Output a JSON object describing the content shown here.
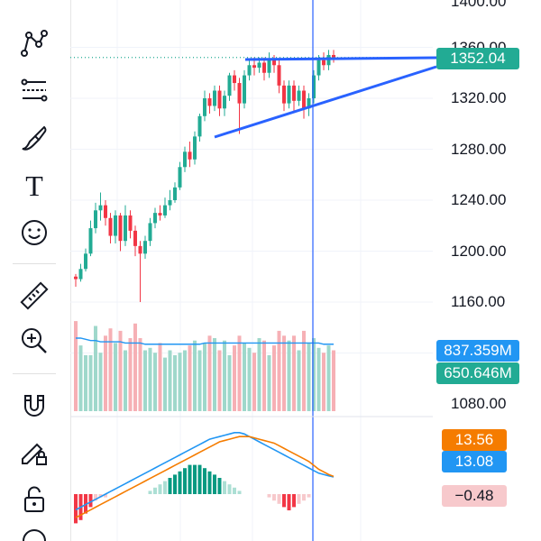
{
  "toolbar": {
    "tools": [
      {
        "name": "pattern-tool",
        "icon": "pattern-icon"
      },
      {
        "name": "fib-tool",
        "icon": "fib-retracement-icon"
      },
      {
        "name": "brush-tool",
        "icon": "brush-icon"
      },
      {
        "name": "text-tool",
        "icon": "text-icon",
        "label": "T"
      },
      {
        "name": "emoji-tool",
        "icon": "smiley-icon"
      },
      {
        "name": "ruler-tool",
        "icon": "ruler-icon"
      },
      {
        "name": "zoom-tool",
        "icon": "zoom-in-icon"
      },
      {
        "name": "magnet-tool",
        "icon": "magnet-icon"
      },
      {
        "name": "lock-drawings-tool",
        "icon": "pencil-lock-icon"
      },
      {
        "name": "unlock-tool",
        "icon": "unlock-icon"
      }
    ]
  },
  "price_axis": {
    "labels": [
      "1400.00",
      "1360.00",
      "1320.00",
      "1280.00",
      "1240.00",
      "1200.00",
      "1160.00",
      "1080.00"
    ],
    "last_price": "1352.04",
    "last_price_color": "#22ab94"
  },
  "volume": {
    "ma_value": "837.359M",
    "ma_color": "#2196f3",
    "value": "650.646M",
    "value_color": "#22ab94"
  },
  "macd": {
    "signal_value": "13.56",
    "signal_color": "#f57c00",
    "macd_value": "13.08",
    "macd_color": "#2196f3",
    "hist_value": "−0.48",
    "hist_color": "#f7c9cc"
  },
  "chart_data": {
    "type": "candlestick",
    "up_color": "#22ab94",
    "down_color": "#f23645",
    "price_range": [
      1080,
      1400
    ],
    "candles": [
      [
        1180,
        1178,
        1172,
        1182
      ],
      [
        1178,
        1186,
        1176,
        1190
      ],
      [
        1186,
        1198,
        1184,
        1202
      ],
      [
        1198,
        1218,
        1196,
        1224
      ],
      [
        1218,
        1232,
        1214,
        1238
      ],
      [
        1232,
        1236,
        1224,
        1246
      ],
      [
        1236,
        1226,
        1220,
        1240
      ],
      [
        1226,
        1212,
        1206,
        1230
      ],
      [
        1212,
        1228,
        1206,
        1232
      ],
      [
        1228,
        1208,
        1200,
        1230
      ],
      [
        1208,
        1228,
        1204,
        1236
      ],
      [
        1228,
        1216,
        1210,
        1232
      ],
      [
        1216,
        1204,
        1196,
        1220
      ],
      [
        1204,
        1198,
        1160,
        1208
      ],
      [
        1198,
        1208,
        1194,
        1212
      ],
      [
        1208,
        1222,
        1204,
        1226
      ],
      [
        1222,
        1230,
        1218,
        1234
      ],
      [
        1230,
        1228,
        1224,
        1236
      ],
      [
        1228,
        1236,
        1226,
        1242
      ],
      [
        1236,
        1240,
        1232,
        1248
      ],
      [
        1240,
        1250,
        1238,
        1254
      ],
      [
        1250,
        1266,
        1248,
        1270
      ],
      [
        1266,
        1278,
        1262,
        1282
      ],
      [
        1278,
        1272,
        1266,
        1286
      ],
      [
        1272,
        1290,
        1268,
        1294
      ],
      [
        1290,
        1306,
        1286,
        1308
      ],
      [
        1306,
        1320,
        1302,
        1326
      ],
      [
        1320,
        1314,
        1308,
        1324
      ],
      [
        1314,
        1326,
        1310,
        1330
      ],
      [
        1326,
        1312,
        1306,
        1330
      ],
      [
        1312,
        1322,
        1306,
        1326
      ],
      [
        1322,
        1338,
        1318,
        1340
      ],
      [
        1338,
        1332,
        1326,
        1342
      ],
      [
        1332,
        1316,
        1292,
        1336
      ],
      [
        1316,
        1338,
        1312,
        1342
      ],
      [
        1338,
        1346,
        1334,
        1350
      ],
      [
        1346,
        1344,
        1338,
        1352
      ],
      [
        1344,
        1348,
        1340,
        1352
      ],
      [
        1348,
        1340,
        1334,
        1352
      ],
      [
        1340,
        1350,
        1336,
        1356
      ],
      [
        1350,
        1346,
        1340,
        1354
      ],
      [
        1346,
        1330,
        1324,
        1350
      ],
      [
        1330,
        1316,
        1310,
        1334
      ],
      [
        1316,
        1330,
        1312,
        1334
      ],
      [
        1330,
        1318,
        1310,
        1334
      ],
      [
        1318,
        1326,
        1314,
        1330
      ],
      [
        1326,
        1312,
        1304,
        1330
      ],
      [
        1312,
        1320,
        1306,
        1324
      ],
      [
        1320,
        1338,
        1316,
        1342
      ],
      [
        1338,
        1350,
        1334,
        1354
      ],
      [
        1350,
        1346,
        1342,
        1356
      ],
      [
        1346,
        1354,
        1342,
        1358
      ],
      [
        1354,
        1352,
        1348,
        1358
      ]
    ],
    "volumes": [
      74,
      54,
      46,
      46,
      70,
      48,
      62,
      68,
      56,
      66,
      50,
      60,
      72,
      60,
      50,
      52,
      48,
      56,
      44,
      50,
      46,
      48,
      50,
      54,
      58,
      50,
      56,
      62,
      60,
      50,
      58,
      46,
      54,
      62,
      56,
      52,
      48,
      60,
      58,
      46,
      54,
      66,
      62,
      58,
      62,
      50,
      66,
      56,
      60,
      52,
      48,
      54,
      50
    ],
    "volume_ma": [
      60,
      60,
      59,
      58,
      58,
      57,
      57,
      57,
      57,
      57,
      56,
      56,
      56,
      56,
      55,
      55,
      55,
      55,
      55,
      55,
      55,
      55,
      55,
      55,
      55,
      55,
      56,
      56,
      56,
      56,
      56,
      56,
      56,
      56,
      56,
      56,
      56,
      56,
      56,
      56,
      56,
      56,
      56,
      56,
      56,
      56,
      56,
      56,
      56,
      56,
      55,
      55,
      55
    ],
    "macd_hist": [
      -9,
      -8,
      -6,
      -4,
      -2,
      -1,
      -1,
      0,
      0,
      0,
      0,
      0,
      0,
      0,
      0,
      1,
      2,
      3,
      4,
      5,
      6,
      7,
      8,
      9,
      9,
      9,
      8,
      7,
      6,
      5,
      4,
      3,
      2,
      1,
      0,
      0,
      0,
      0,
      0,
      -1,
      -2,
      -3,
      -4,
      -5,
      -4,
      -3,
      -2,
      -1,
      0,
      0,
      0,
      0,
      0
    ],
    "macd_line": [
      -12,
      -10,
      -8,
      -6,
      -4,
      -2,
      0,
      2,
      4,
      6,
      8,
      10,
      12,
      14,
      16,
      18,
      20,
      22,
      24,
      26,
      28,
      30,
      32,
      34,
      36,
      38,
      40,
      42,
      43,
      44,
      45,
      46,
      47,
      47,
      46,
      44,
      42,
      40,
      38,
      36,
      34,
      32,
      30,
      28,
      26,
      24,
      22,
      20,
      18,
      16,
      15,
      14,
      13.08
    ],
    "signal_line": [
      -18,
      -16,
      -14,
      -12,
      -10,
      -8,
      -6,
      -4,
      -2,
      0,
      2,
      4,
      6,
      8,
      10,
      12,
      14,
      16,
      18,
      20,
      22,
      24,
      26,
      28,
      30,
      32,
      34,
      36,
      38,
      40,
      41,
      42,
      43,
      44,
      44,
      44,
      43,
      42,
      41,
      40,
      39,
      37,
      35,
      33,
      31,
      29,
      27,
      25,
      22,
      19,
      17,
      15,
      13.56
    ]
  }
}
